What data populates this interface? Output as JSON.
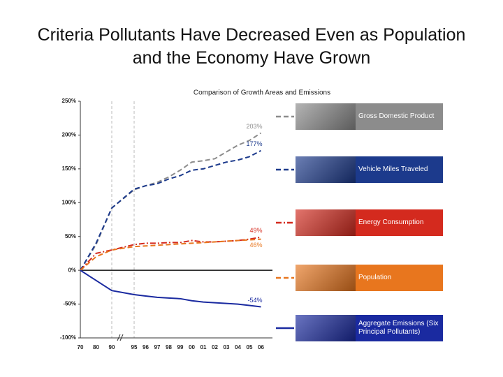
{
  "chart_data": {
    "type": "line",
    "title": "Criteria Pollutants Have Decreased Even as Population and the Economy Have Grown",
    "subtitle": "Comparison of Growth Areas and Emissions",
    "categories": [
      "70",
      "80",
      "90",
      "95",
      "96",
      "97",
      "98",
      "99",
      "00",
      "01",
      "02",
      "03",
      "04",
      "05",
      "06"
    ],
    "ylim": [
      -100,
      250
    ],
    "yticks": [
      {
        "value": -100,
        "label": "-100%"
      },
      {
        "value": -50,
        "label": "-50%"
      },
      {
        "value": 0,
        "label": "0%"
      },
      {
        "value": 50,
        "label": "50%"
      },
      {
        "value": 100,
        "label": "100%"
      },
      {
        "value": 150,
        "label": "150%"
      },
      {
        "value": 200,
        "label": "200%"
      },
      {
        "value": 250,
        "label": "250%"
      }
    ],
    "series": [
      {
        "name": "Gross Domestic Product",
        "color": "#8c8c8c",
        "dash": "dashed",
        "values": [
          0,
          38,
          92,
          119,
          125,
          130,
          138,
          148,
          160,
          162,
          165,
          175,
          185,
          192,
          203
        ],
        "value_labels": [
          null,
          null,
          null,
          null,
          null,
          null,
          null,
          null,
          null,
          null,
          null,
          null,
          null,
          null,
          "203%"
        ]
      },
      {
        "name": "Vehicle Miles Traveled",
        "color": "#1c3a8c",
        "dash": "dashed",
        "values": [
          0,
          40,
          92,
          120,
          125,
          128,
          135,
          140,
          148,
          150,
          155,
          160,
          163,
          168,
          177
        ],
        "value_labels": [
          null,
          null,
          null,
          null,
          null,
          null,
          null,
          null,
          null,
          null,
          null,
          null,
          null,
          null,
          "177%"
        ]
      },
      {
        "name": "Energy Consumption",
        "color": "#d42a1e",
        "dash": "dashdot",
        "values": [
          0,
          25,
          30,
          38,
          40,
          40,
          41,
          41,
          44,
          42,
          42,
          43,
          44,
          46,
          49
        ],
        "value_labels": [
          null,
          null,
          null,
          null,
          null,
          null,
          null,
          null,
          null,
          null,
          null,
          null,
          null,
          null,
          "49%"
        ]
      },
      {
        "name": "Population",
        "color": "#e8761e",
        "dash": "dashed",
        "values": [
          0,
          20,
          30,
          35,
          36,
          37,
          38,
          39,
          40,
          41,
          42,
          43,
          44,
          45,
          46
        ],
        "value_labels": [
          null,
          null,
          null,
          null,
          null,
          null,
          null,
          null,
          null,
          null,
          null,
          null,
          null,
          null,
          "46%"
        ]
      },
      {
        "name": "Aggregate Emissions (Six Principal Pollutants)",
        "color": "#1a2aa0",
        "dash": "solid",
        "values": [
          0,
          -15,
          -30,
          -36,
          -38,
          -40,
          -41,
          -42,
          -45,
          -47,
          -48,
          -49,
          -50,
          -52,
          -54
        ],
        "value_labels": [
          null,
          null,
          null,
          null,
          null,
          null,
          null,
          null,
          null,
          null,
          null,
          null,
          null,
          null,
          "-54%"
        ]
      }
    ]
  }
}
